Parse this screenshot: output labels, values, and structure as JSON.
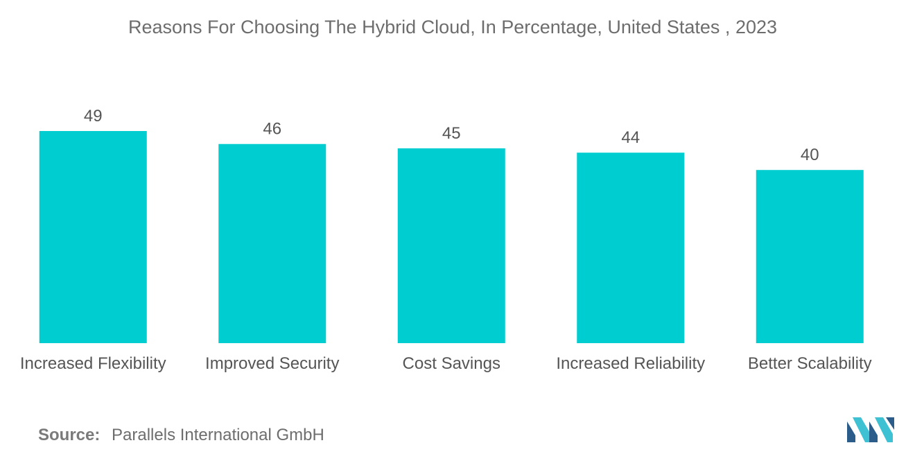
{
  "chart_data": {
    "type": "bar",
    "title": "Reasons For Choosing The Hybrid Cloud, In Percentage, United States , 2023",
    "categories": [
      "Increased Flexibility",
      "Improved Security",
      "Cost Savings",
      "Increased Reliability",
      "Better Scalability"
    ],
    "values": [
      49,
      46,
      45,
      44,
      40
    ],
    "xlabel": "",
    "ylabel": "",
    "ylim": [
      0,
      49
    ],
    "grid": false,
    "legend": "none",
    "bar_color": "#00cdd0"
  },
  "source": {
    "label": "Source:",
    "text": "Parallels International GmbH"
  },
  "colors": {
    "bar": "#00cdd0",
    "logo_dark": "#2b5c8a",
    "logo_light": "#3ec1d3"
  },
  "logo": {
    "icon": "mordor-intelligence-logo-icon"
  }
}
